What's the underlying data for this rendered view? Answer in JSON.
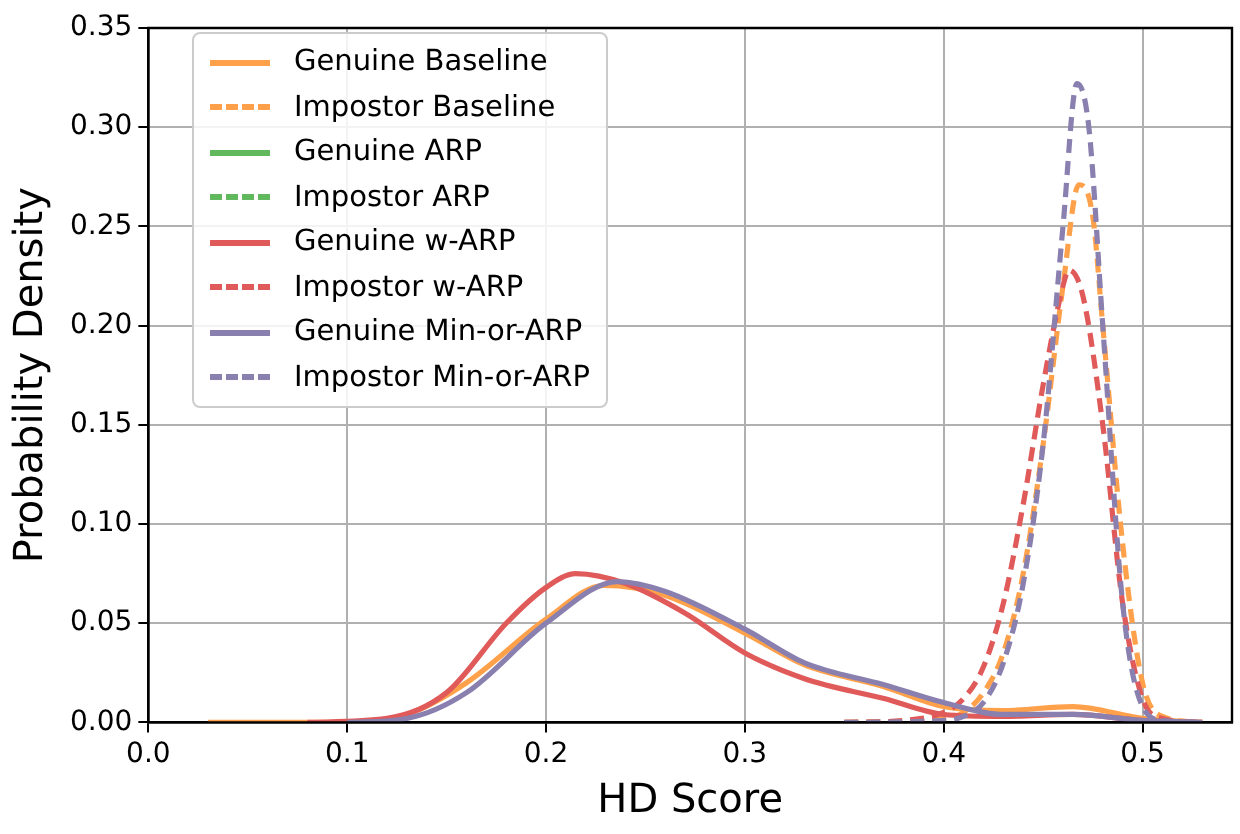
{
  "chart_data": {
    "type": "line",
    "xlabel": "HD Score",
    "ylabel": "Probability Density",
    "xlim": [
      0,
      0.545
    ],
    "ylim": [
      0,
      0.35
    ],
    "xticks": [
      {
        "value": 0,
        "label": "0.0"
      },
      0.1,
      0.2,
      0.3,
      0.4,
      0.5
    ],
    "yticks": [
      {
        "value": 0,
        "label": "0.00"
      },
      0.05,
      {
        "value": 0.1,
        "label": "0.10"
      },
      0.15,
      {
        "value": 0.2,
        "label": "0.20"
      },
      0.25,
      {
        "value": 0.3,
        "label": "0.30"
      },
      0.35
    ],
    "grid": true,
    "legend": "top left",
    "marker": "none",
    "series": [
      {
        "name": "Genuine Baseline",
        "color": "#ffa04a",
        "line_style": "solid",
        "x": [
          0.03,
          0.1,
          0.13,
          0.16,
          0.2,
          0.229,
          0.26,
          0.3,
          0.33,
          0.37,
          0.4,
          0.43,
          0.465,
          0.5,
          0.53
        ],
        "values": [
          0,
          0,
          0.004,
          0.02,
          0.052,
          0.069,
          0.064,
          0.045,
          0.029,
          0.018,
          0.008,
          0.006,
          0.008,
          0.002,
          0
        ]
      },
      {
        "name": "Impostor Baseline",
        "color": "#ffa04a",
        "line_style": "dashed",
        "x": [
          0.35,
          0.4,
          0.41,
          0.42,
          0.43,
          0.44,
          0.45,
          0.46,
          0.468,
          0.475,
          0.48,
          0.49,
          0.5,
          0.51,
          0.53
        ],
        "values": [
          0,
          0.002,
          0.005,
          0.015,
          0.035,
          0.075,
          0.14,
          0.22,
          0.271,
          0.255,
          0.2,
          0.09,
          0.02,
          0.003,
          0
        ]
      },
      {
        "name": "Genuine ARP",
        "color": "#62b85c",
        "line_style": "solid"
      },
      {
        "name": "Impostor ARP",
        "color": "#62b85c",
        "line_style": "dashed"
      },
      {
        "name": "Genuine w-ARP",
        "color": "#e05a5a",
        "line_style": "solid",
        "x": [
          0.08,
          0.12,
          0.15,
          0.18,
          0.2,
          0.215,
          0.24,
          0.27,
          0.3,
          0.33,
          0.37,
          0.4,
          0.43,
          0.465,
          0.5,
          0.53
        ],
        "values": [
          0,
          0.002,
          0.015,
          0.05,
          0.068,
          0.075,
          0.07,
          0.055,
          0.035,
          0.022,
          0.012,
          0.004,
          0.003,
          0.004,
          0.001,
          0
        ]
      },
      {
        "name": "Impostor w-ARP",
        "color": "#e05a5a",
        "line_style": "dashed",
        "x": [
          0.35,
          0.38,
          0.4,
          0.41,
          0.42,
          0.43,
          0.44,
          0.45,
          0.46,
          0.463,
          0.47,
          0.48,
          0.49,
          0.5,
          0.51,
          0.53
        ],
        "values": [
          0,
          0.001,
          0.005,
          0.012,
          0.028,
          0.06,
          0.11,
          0.17,
          0.22,
          0.228,
          0.215,
          0.15,
          0.06,
          0.012,
          0.002,
          0
        ]
      },
      {
        "name": "Genuine Min-or-ARP",
        "color": "#8a80b0",
        "line_style": "solid",
        "x": [
          0.1,
          0.13,
          0.16,
          0.2,
          0.236,
          0.26,
          0.3,
          0.33,
          0.37,
          0.4,
          0.43,
          0.465,
          0.5,
          0.53
        ],
        "values": [
          0,
          0.002,
          0.015,
          0.05,
          0.071,
          0.066,
          0.047,
          0.03,
          0.019,
          0.01,
          0.004,
          0.004,
          0.001,
          0
        ]
      },
      {
        "name": "Impostor Min-or-ARP",
        "color": "#8a80b0",
        "line_style": "dashed",
        "x": [
          0.35,
          0.4,
          0.41,
          0.42,
          0.43,
          0.44,
          0.45,
          0.46,
          0.467,
          0.473,
          0.48,
          0.49,
          0.5,
          0.51,
          0.53
        ],
        "values": [
          0,
          0.001,
          0.003,
          0.01,
          0.03,
          0.07,
          0.14,
          0.25,
          0.322,
          0.3,
          0.2,
          0.06,
          0.008,
          0.001,
          0
        ]
      }
    ]
  }
}
